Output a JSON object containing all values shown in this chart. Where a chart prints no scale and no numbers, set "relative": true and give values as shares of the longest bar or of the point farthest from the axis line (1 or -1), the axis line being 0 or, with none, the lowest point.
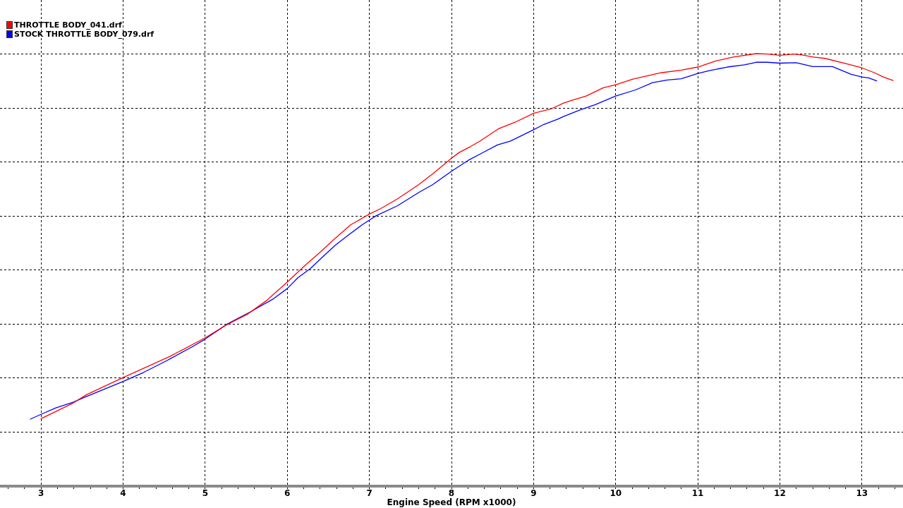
{
  "chart_data": {
    "type": "line",
    "relative": true,
    "xlabel": "Engine Speed (RPM x1000)",
    "xlim": [
      2.5,
      13.5
    ],
    "xticks": [
      {
        "value": 2.6,
        "label": null
      },
      {
        "value": 2.8,
        "label": null
      },
      3,
      {
        "value": 3.2,
        "label": null
      },
      {
        "value": 3.4,
        "label": null
      },
      {
        "value": 3.6,
        "label": null
      },
      {
        "value": 3.8,
        "label": null
      },
      4,
      {
        "value": 4.2,
        "label": null
      },
      {
        "value": 4.4,
        "label": null
      },
      {
        "value": 4.6,
        "label": null
      },
      {
        "value": 4.8,
        "label": null
      },
      5,
      {
        "value": 5.2,
        "label": null
      },
      {
        "value": 5.4,
        "label": null
      },
      {
        "value": 5.6,
        "label": null
      },
      {
        "value": 5.8,
        "label": null
      },
      6,
      {
        "value": 6.2,
        "label": null
      },
      {
        "value": 6.4,
        "label": null
      },
      {
        "value": 6.6,
        "label": null
      },
      {
        "value": 6.8,
        "label": null
      },
      7,
      {
        "value": 7.2,
        "label": null
      },
      {
        "value": 7.4,
        "label": null
      },
      {
        "value": 7.6,
        "label": null
      },
      {
        "value": 7.8,
        "label": null
      },
      8,
      {
        "value": 8.2,
        "label": null
      },
      {
        "value": 8.4,
        "label": null
      },
      {
        "value": 8.6,
        "label": null
      },
      {
        "value": 8.8,
        "label": null
      },
      9,
      {
        "value": 9.2,
        "label": null
      },
      {
        "value": 9.4,
        "label": null
      },
      {
        "value": 9.6,
        "label": null
      },
      {
        "value": 9.8,
        "label": null
      },
      10,
      {
        "value": 10.2,
        "label": null
      },
      {
        "value": 10.4,
        "label": null
      },
      {
        "value": 10.6,
        "label": null
      },
      {
        "value": 10.8,
        "label": null
      },
      11,
      {
        "value": 11.2,
        "label": null
      },
      {
        "value": 11.4,
        "label": null
      },
      {
        "value": 11.6,
        "label": null
      },
      {
        "value": 11.8,
        "label": null
      },
      12,
      {
        "value": 12.2,
        "label": null
      },
      {
        "value": 12.4,
        "label": null
      },
      {
        "value": 12.6,
        "label": null
      },
      {
        "value": 12.8,
        "label": null
      },
      13,
      {
        "value": 13.2,
        "label": null
      },
      {
        "value": 13.4,
        "label": null
      }
    ],
    "grid": true,
    "legend": "top left",
    "series": [
      {
        "name": "THROTTLE BODY_041.drf",
        "color": "#ff0000",
        "x": [
          3.0,
          3.39,
          3.55,
          4.0,
          4.57,
          5.0,
          5.26,
          5.51,
          5.74,
          6.0,
          6.22,
          6.39,
          6.56,
          6.77,
          7.0,
          7.14,
          7.34,
          7.6,
          7.77,
          8.0,
          8.09,
          8.23,
          8.34,
          8.57,
          8.77,
          9.0,
          9.21,
          9.37,
          9.47,
          9.64,
          9.85,
          10.0,
          10.21,
          10.56,
          10.8,
          11.0,
          11.22,
          11.43,
          11.71,
          11.85,
          12.0,
          12.17,
          12.27,
          12.41,
          12.55,
          12.82,
          13.0,
          13.15,
          13.26,
          13.38
        ],
        "values": [
          0.156,
          0.192,
          0.211,
          0.251,
          0.3,
          0.343,
          0.373,
          0.397,
          0.428,
          0.472,
          0.511,
          0.539,
          0.569,
          0.604,
          0.629,
          0.642,
          0.664,
          0.697,
          0.722,
          0.758,
          0.771,
          0.785,
          0.797,
          0.826,
          0.841,
          0.862,
          0.872,
          0.886,
          0.892,
          0.902,
          0.921,
          0.928,
          0.941,
          0.956,
          0.962,
          0.969,
          0.983,
          0.992,
          1.0,
          0.999,
          0.996,
          0.999,
          0.997,
          0.992,
          0.989,
          0.976,
          0.967,
          0.956,
          0.946,
          0.938
        ]
      },
      {
        "name": "STOCK THROTTLE BODY_079.drf",
        "color": "#0000ff",
        "x": [
          2.87,
          3.0,
          3.18,
          3.39,
          3.55,
          4.0,
          4.25,
          4.53,
          4.85,
          5.0,
          5.27,
          5.55,
          5.83,
          6.0,
          6.13,
          6.28,
          6.42,
          6.59,
          6.74,
          6.91,
          7.0,
          7.08,
          7.34,
          7.62,
          7.77,
          8.0,
          8.21,
          8.37,
          8.56,
          8.72,
          9.0,
          9.12,
          9.29,
          9.37,
          9.57,
          9.75,
          10.0,
          10.24,
          10.45,
          10.63,
          10.8,
          11.0,
          11.15,
          11.36,
          11.57,
          11.71,
          11.85,
          12.0,
          12.2,
          12.4,
          12.64,
          12.87,
          13.0,
          13.08,
          13.18
        ],
        "values": [
          0.155,
          0.166,
          0.181,
          0.194,
          0.207,
          0.242,
          0.263,
          0.29,
          0.323,
          0.34,
          0.375,
          0.403,
          0.433,
          0.457,
          0.482,
          0.503,
          0.528,
          0.558,
          0.58,
          0.604,
          0.615,
          0.625,
          0.648,
          0.681,
          0.697,
          0.728,
          0.754,
          0.77,
          0.789,
          0.798,
          0.824,
          0.836,
          0.848,
          0.855,
          0.87,
          0.882,
          0.902,
          0.916,
          0.933,
          0.939,
          0.942,
          0.954,
          0.961,
          0.969,
          0.974,
          0.98,
          0.98,
          0.978,
          0.979,
          0.97,
          0.97,
          0.952,
          0.946,
          0.944,
          0.937
        ]
      }
    ]
  }
}
